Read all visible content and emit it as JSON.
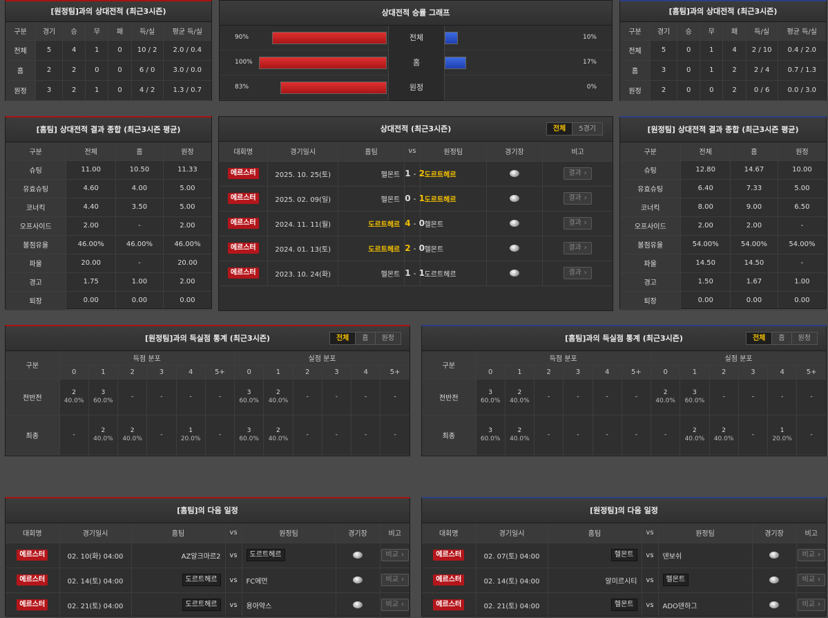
{
  "away_h2h": {
    "title": "[원정팀]과의 상대전적 (최근3시즌)",
    "headers": [
      "구분",
      "경기",
      "승",
      "무",
      "패",
      "득/실",
      "평균 득/실"
    ],
    "rows": [
      [
        "전체",
        "5",
        "4",
        "1",
        "0",
        "10 / 2",
        "2.0 / 0.4"
      ],
      [
        "홈",
        "2",
        "2",
        "0",
        "0",
        "6 / 0",
        "3.0 / 0.0"
      ],
      [
        "원정",
        "3",
        "2",
        "1",
        "0",
        "4 / 2",
        "1.3 / 0.7"
      ]
    ]
  },
  "home_h2h": {
    "title": "[홈팀]과의 상대전적 (최근3시즌)",
    "headers": [
      "구분",
      "경기",
      "승",
      "무",
      "패",
      "득/실",
      "평균 득/실"
    ],
    "rows": [
      [
        "전체",
        "5",
        "0",
        "1",
        "4",
        "2 / 10",
        "0.4 / 2.0"
      ],
      [
        "홈",
        "3",
        "0",
        "1",
        "2",
        "2 / 4",
        "0.7 / 1.3"
      ],
      [
        "원정",
        "2",
        "0",
        "0",
        "2",
        "0 / 6",
        "0.0 / 3.0"
      ]
    ]
  },
  "winrate": {
    "title": "상대전적 승률 그래프",
    "rows": [
      {
        "label": "전체",
        "left": "90%",
        "right": "10%",
        "lv": 0.9,
        "rv": 0.1
      },
      {
        "label": "홈",
        "left": "100%",
        "right": "17%",
        "lv": 1.0,
        "rv": 0.17
      },
      {
        "label": "원정",
        "left": "83%",
        "right": "0%",
        "lv": 0.83,
        "rv": 0.0
      }
    ]
  },
  "home_summary": {
    "title": "[홈팀] 상대전적 결과 종합 (최근3시즌 평균)",
    "headers": [
      "구분",
      "전체",
      "홈",
      "원정"
    ],
    "rows": [
      [
        "슈팅",
        "11.00",
        "10.50",
        "11.33"
      ],
      [
        "유효슈팅",
        "4.60",
        "4.00",
        "5.00"
      ],
      [
        "코너킥",
        "4.40",
        "3.50",
        "5.00"
      ],
      [
        "오프사이드",
        "2.00",
        "-",
        "2.00"
      ],
      [
        "볼점유율",
        "46.00%",
        "46.00%",
        "46.00%"
      ],
      [
        "파울",
        "20.00",
        "-",
        "20.00"
      ],
      [
        "경고",
        "1.75",
        "1.00",
        "2.00"
      ],
      [
        "퇴장",
        "0.00",
        "0.00",
        "0.00"
      ]
    ]
  },
  "away_summary": {
    "title": "[원정팀] 상대전적 결과 종합 (최근3시즌 평균)",
    "headers": [
      "구분",
      "전체",
      "홈",
      "원정"
    ],
    "rows": [
      [
        "슈팅",
        "12.80",
        "14.67",
        "10.00"
      ],
      [
        "유효슈팅",
        "6.40",
        "7.33",
        "5.00"
      ],
      [
        "코너킥",
        "8.00",
        "9.00",
        "6.50"
      ],
      [
        "오프사이드",
        "2.00",
        "2.00",
        "-"
      ],
      [
        "볼점유율",
        "54.00%",
        "54.00%",
        "54.00%"
      ],
      [
        "파울",
        "14.50",
        "14.50",
        "-"
      ],
      [
        "경고",
        "1.50",
        "1.67",
        "1.00"
      ],
      [
        "퇴장",
        "0.00",
        "0.00",
        "0.00"
      ]
    ]
  },
  "matches": {
    "title": "상대전적 (최근3시즌)",
    "toggle": [
      "전체",
      "5경기"
    ],
    "headers": [
      "대회명",
      "경기일시",
      "홈팀",
      "vs",
      "원정팀",
      "경기장",
      "비고"
    ],
    "rows": [
      {
        "league": "에르스터",
        "date": "2025. 10. 25(토)",
        "home": "헬몬트",
        "hs": "1",
        "sep": "-",
        "as": "2",
        "away": "도르트헤르",
        "win": "away",
        "btn": "결과"
      },
      {
        "league": "에르스터",
        "date": "2025. 02. 09(일)",
        "home": "헬몬트",
        "hs": "0",
        "sep": "-",
        "as": "1",
        "away": "도르트헤르",
        "win": "away",
        "btn": "결과"
      },
      {
        "league": "에르스터",
        "date": "2024. 11. 11(월)",
        "home": "도르트헤르",
        "hs": "4",
        "sep": "-",
        "as": "0",
        "away": "헬몬트",
        "win": "home",
        "btn": "결과"
      },
      {
        "league": "에르스터",
        "date": "2024. 01. 13(토)",
        "home": "도르트헤르",
        "hs": "2",
        "sep": "-",
        "as": "0",
        "away": "헬몬트",
        "win": "home",
        "btn": "결과"
      },
      {
        "league": "에르스터",
        "date": "2023. 10. 24(화)",
        "home": "헬몬트",
        "hs": "1",
        "sep": "-",
        "as": "1",
        "away": "도르트헤르",
        "win": "none",
        "btn": "결과"
      }
    ]
  },
  "away_goals": {
    "title": "[원정팀]과의 득실점 통계 (최근3시즌)",
    "toggle": [
      "전체",
      "홈",
      "원정"
    ],
    "col_label": "구분",
    "scored": "득점 분포",
    "conceded": "실점 분포",
    "buckets": [
      "0",
      "1",
      "2",
      "3",
      "4",
      "5+"
    ],
    "rows": [
      {
        "label": "전반전",
        "cells": [
          [
            "2",
            "40.0%"
          ],
          [
            "3",
            "60.0%"
          ],
          [
            "-",
            ""
          ],
          [
            "-",
            ""
          ],
          [
            "-",
            ""
          ],
          [
            "-",
            ""
          ],
          [
            "3",
            "60.0%"
          ],
          [
            "2",
            "40.0%"
          ],
          [
            "-",
            ""
          ],
          [
            "-",
            ""
          ],
          [
            "-",
            ""
          ],
          [
            "-",
            ""
          ]
        ]
      },
      {
        "label": "최종",
        "cells": [
          [
            "-",
            ""
          ],
          [
            "2",
            "40.0%"
          ],
          [
            "2",
            "40.0%"
          ],
          [
            "-",
            ""
          ],
          [
            "1",
            "20.0%"
          ],
          [
            "-",
            ""
          ],
          [
            "3",
            "60.0%"
          ],
          [
            "2",
            "40.0%"
          ],
          [
            "-",
            ""
          ],
          [
            "-",
            ""
          ],
          [
            "-",
            ""
          ],
          [
            "-",
            ""
          ]
        ]
      }
    ]
  },
  "home_goals": {
    "title": "[홈팀]과의 득실점 통계 (최근3시즌)",
    "toggle": [
      "전체",
      "홈",
      "원정"
    ],
    "col_label": "구분",
    "scored": "득점 분포",
    "conceded": "실점 분포",
    "buckets": [
      "0",
      "1",
      "2",
      "3",
      "4",
      "5+"
    ],
    "rows": [
      {
        "label": "전반전",
        "cells": [
          [
            "3",
            "60.0%"
          ],
          [
            "2",
            "40.0%"
          ],
          [
            "-",
            ""
          ],
          [
            "-",
            ""
          ],
          [
            "-",
            ""
          ],
          [
            "-",
            ""
          ],
          [
            "2",
            "40.0%"
          ],
          [
            "3",
            "60.0%"
          ],
          [
            "-",
            ""
          ],
          [
            "-",
            ""
          ],
          [
            "-",
            ""
          ],
          [
            "-",
            ""
          ]
        ]
      },
      {
        "label": "최종",
        "cells": [
          [
            "3",
            "60.0%"
          ],
          [
            "2",
            "40.0%"
          ],
          [
            "-",
            ""
          ],
          [
            "-",
            ""
          ],
          [
            "-",
            ""
          ],
          [
            "-",
            ""
          ],
          [
            "-",
            ""
          ],
          [
            "2",
            "40.0%"
          ],
          [
            "2",
            "40.0%"
          ],
          [
            "-",
            ""
          ],
          [
            "1",
            "20.0%"
          ],
          [
            "-",
            ""
          ]
        ]
      }
    ]
  },
  "home_next": {
    "title": "[홈팀]의 다음 일정",
    "headers": [
      "대회명",
      "경기일시",
      "홈팀",
      "vs",
      "원정팀",
      "경기장",
      "비고"
    ],
    "rows": [
      {
        "league": "에르스터",
        "date": "02. 10(화) 04:00",
        "home": "AZ알크마르2",
        "away": "도르트헤르",
        "hl": "away",
        "btn": "비교"
      },
      {
        "league": "에르스터",
        "date": "02. 14(토) 04:00",
        "home": "도르트헤르",
        "away": "FC에먼",
        "hl": "home",
        "btn": "비교"
      },
      {
        "league": "에르스터",
        "date": "02. 21(토) 04:00",
        "home": "도르트헤르",
        "away": "용아약스",
        "hl": "home",
        "btn": "비교"
      }
    ]
  },
  "away_next": {
    "title": "[원정팀]의 다음 일정",
    "headers": [
      "대회명",
      "경기일시",
      "홈팀",
      "vs",
      "원정팀",
      "경기장",
      "비고"
    ],
    "rows": [
      {
        "league": "에르스터",
        "date": "02. 07(토) 04:00",
        "home": "헬몬트",
        "away": "덴보쉬",
        "hl": "home",
        "btn": "비교"
      },
      {
        "league": "에르스터",
        "date": "02. 14(토) 04:00",
        "home": "알미르시티",
        "away": "헬몬트",
        "hl": "away",
        "btn": "비교"
      },
      {
        "league": "에르스터",
        "date": "02. 21(토) 04:00",
        "home": "헬몬트",
        "away": "ADO덴하그",
        "hl": "home",
        "btn": "비교"
      }
    ]
  },
  "colors": {
    "accent": "#f3c000",
    "red_bar": "#c8201f",
    "blue_bar": "#2d52c8",
    "league_badge": "#b4161b"
  }
}
